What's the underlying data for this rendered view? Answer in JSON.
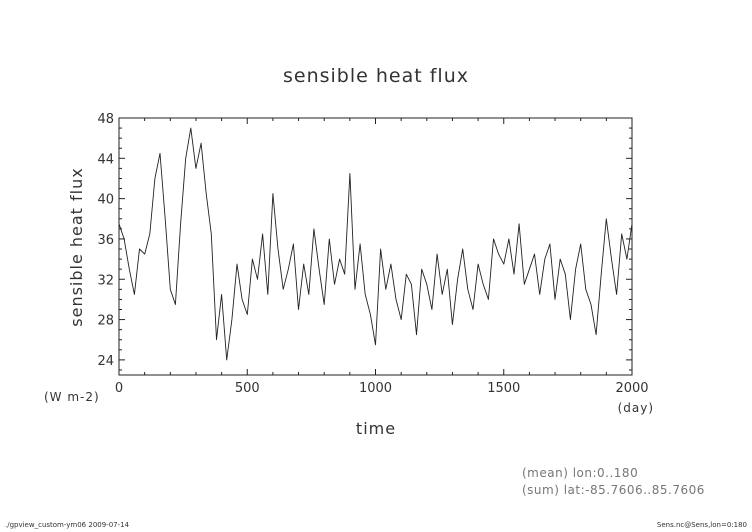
{
  "chart_data": {
    "type": "line",
    "title": "sensible heat flux",
    "xlabel": "time",
    "ylabel": "sensible heat flux",
    "x_unit": "(day)",
    "y_unit": "(W m-2)",
    "xlim": [
      0,
      2000
    ],
    "ylim": [
      22.5,
      48
    ],
    "x_ticks": [
      0,
      500,
      1000,
      1500,
      2000
    ],
    "y_ticks": [
      24,
      28,
      32,
      36,
      40,
      44,
      48
    ],
    "grid": false,
    "legend": "none",
    "series": [
      {
        "x": [
          0,
          20,
          40,
          60,
          80,
          100,
          120,
          140,
          160,
          180,
          200,
          220,
          240,
          260,
          280,
          300,
          320,
          340,
          360,
          380,
          400,
          420,
          440,
          460,
          480,
          500,
          520,
          540,
          560,
          580,
          600,
          620,
          640,
          660,
          680,
          700,
          720,
          740,
          760,
          780,
          800,
          820,
          840,
          860,
          880,
          900,
          920,
          940,
          960,
          980,
          1000,
          1020,
          1040,
          1060,
          1080,
          1100,
          1120,
          1140,
          1160,
          1180,
          1200,
          1220,
          1240,
          1260,
          1280,
          1300,
          1320,
          1340,
          1360,
          1380,
          1400,
          1420,
          1440,
          1460,
          1480,
          1500,
          1520,
          1540,
          1560,
          1580,
          1600,
          1620,
          1640,
          1660,
          1680,
          1700,
          1720,
          1740,
          1760,
          1780,
          1800,
          1820,
          1840,
          1860,
          1880,
          1900,
          1920,
          1940,
          1960,
          1980,
          2000
        ],
        "y": [
          37.5,
          36,
          33,
          30.5,
          35,
          34.5,
          36.5,
          42,
          44.5,
          38,
          31,
          29.5,
          37.5,
          44,
          47,
          43,
          45.5,
          40.5,
          36.5,
          26,
          30.5,
          24,
          28,
          33.5,
          30,
          28.5,
          34,
          32,
          36.5,
          30.5,
          40.5,
          35,
          31,
          33,
          35.5,
          29,
          33.5,
          30.5,
          37,
          33,
          29.5,
          36,
          31.5,
          34,
          32.5,
          42.5,
          31,
          35.5,
          30.5,
          28.5,
          25.5,
          35,
          31,
          33.5,
          30,
          28,
          32.5,
          31.5,
          26.5,
          33,
          31.5,
          29,
          34.5,
          30.5,
          33,
          27.5,
          32,
          35,
          31,
          29,
          33.5,
          31.5,
          30,
          36,
          34.5,
          33.5,
          36,
          32.5,
          37.5,
          31.5,
          33,
          34.5,
          30.5,
          34,
          35.5,
          30,
          34,
          32.5,
          28,
          33,
          35.5,
          31,
          29.5,
          26.5,
          32.5,
          38,
          34,
          30.5,
          36.5,
          34,
          37.5
        ]
      }
    ]
  },
  "notes": [
    "(mean) lon:0..180",
    "(sum) lat:-85.7606..85.7606"
  ],
  "footer": {
    "left": "./gpview_custom-ym06  2009-07-14",
    "right": "Sens.nc@Sens,lon=0:180"
  }
}
